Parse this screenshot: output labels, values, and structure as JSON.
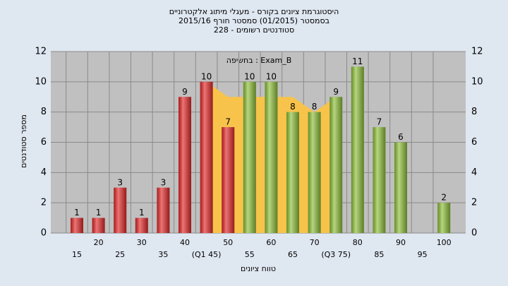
{
  "chart_data": {
    "type": "bar",
    "title": [
      "היסטוגרמת ציונים בקורס - מעגלי מיתוג אלקטרוניים",
      "בסמסטר  (01/2015)  סמסטר חורף 2015/16",
      "סטודנטים רשומים - 228"
    ],
    "annotation": "בחשיפה : Exam_B",
    "ylabel": "מספר סטודנטים",
    "xlabel": "טווח ציונים",
    "categories": [
      "15",
      "20",
      "25",
      "30",
      "35",
      "40",
      "(Q1 45)",
      "50",
      "55",
      "60",
      "65",
      "70",
      "(Q3 75)",
      "80",
      "85",
      "90",
      "95",
      "100"
    ],
    "values": [
      1,
      1,
      3,
      1,
      3,
      9,
      10,
      7,
      10,
      10,
      8,
      8,
      9,
      11,
      7,
      6,
      null,
      2
    ],
    "colors": [
      "#e52a2a",
      "#e52a2a",
      "#e52a2a",
      "#e52a2a",
      "#e52a2a",
      "#e52a2a",
      "#e52a2a",
      "#e52a2a",
      "#8fc13a",
      "#8fc13a",
      "#8fc13a",
      "#8fc13a",
      "#8fc13a",
      "#8fc13a",
      "#8fc13a",
      "#8fc13a",
      "#8fc13a",
      "#8fc13a"
    ],
    "area": {
      "color": "#f7c34a",
      "values": [
        null,
        null,
        null,
        null,
        null,
        null,
        10,
        9,
        9,
        9,
        9,
        8,
        9,
        null,
        null,
        null,
        null,
        null
      ]
    },
    "ylim": [
      0,
      12
    ],
    "yticks": [
      0,
      2,
      4,
      6,
      8,
      10,
      12
    ],
    "grid": true
  }
}
